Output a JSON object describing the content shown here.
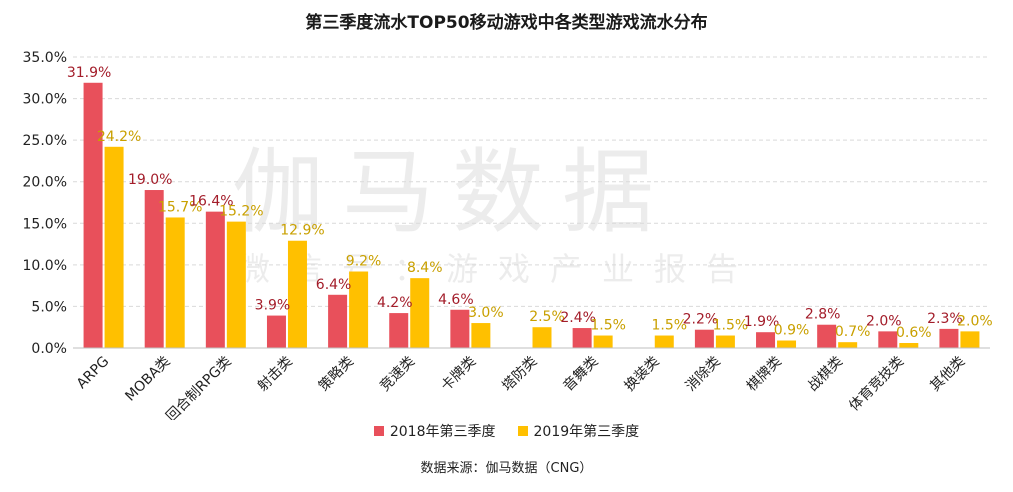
{
  "chart_data": {
    "type": "bar",
    "title": "第三季度流水TOP50移动游戏中各类型游戏流水分布",
    "categories": [
      "ARPG",
      "MOBA类",
      "回合制RPG类",
      "射击类",
      "策略类",
      "竞速类",
      "卡牌类",
      "塔防类",
      "音舞类",
      "换装类",
      "消除类",
      "棋牌类",
      "战棋类",
      "体育竞技类",
      "其他类"
    ],
    "series": [
      {
        "name": "2018年第三季度",
        "color": "#E8505B",
        "values": [
          31.9,
          19.0,
          16.4,
          3.9,
          6.4,
          4.2,
          4.6,
          null,
          2.4,
          null,
          2.2,
          1.9,
          2.8,
          2.0,
          2.3
        ],
        "labels": [
          "31.9%",
          "19.0%",
          "16.4%",
          "3.9%",
          "6.4%",
          "4.2%",
          "4.6%",
          "",
          "2.4%",
          "",
          "2.2%",
          "1.9%",
          "2.8%",
          "2.0%",
          "2.3%"
        ]
      },
      {
        "name": "2019年第三季度",
        "color": "#FFC000",
        "values": [
          24.2,
          15.7,
          15.2,
          12.9,
          9.2,
          8.4,
          3.0,
          2.5,
          1.5,
          1.5,
          1.5,
          0.9,
          0.7,
          0.6,
          2.0
        ],
        "labels": [
          "24.2%",
          "15.7%",
          "15.2%",
          "12.9%",
          "9.2%",
          "8.4%",
          "3.0%",
          "2.5%",
          "1.5%",
          "1.5%",
          "1.5%",
          "0.9%",
          "0.7%",
          "0.6%",
          "2.0%"
        ]
      }
    ],
    "label_colors": [
      "#A31D2A",
      "#C9A000"
    ],
    "ylim": [
      0,
      35
    ],
    "yticks": [
      0,
      5,
      10,
      15,
      20,
      25,
      30,
      35
    ],
    "ytick_labels": [
      "0.0%",
      "5.0%",
      "10.0%",
      "15.0%",
      "20.0%",
      "25.0%",
      "30.0%",
      "35.0%"
    ],
    "grid": true,
    "legend_position": "bottom"
  },
  "watermark": {
    "main": "伽马数据",
    "sub": "微信号：游戏产业报告"
  },
  "source": "数据来源：伽马数据（CNG）"
}
